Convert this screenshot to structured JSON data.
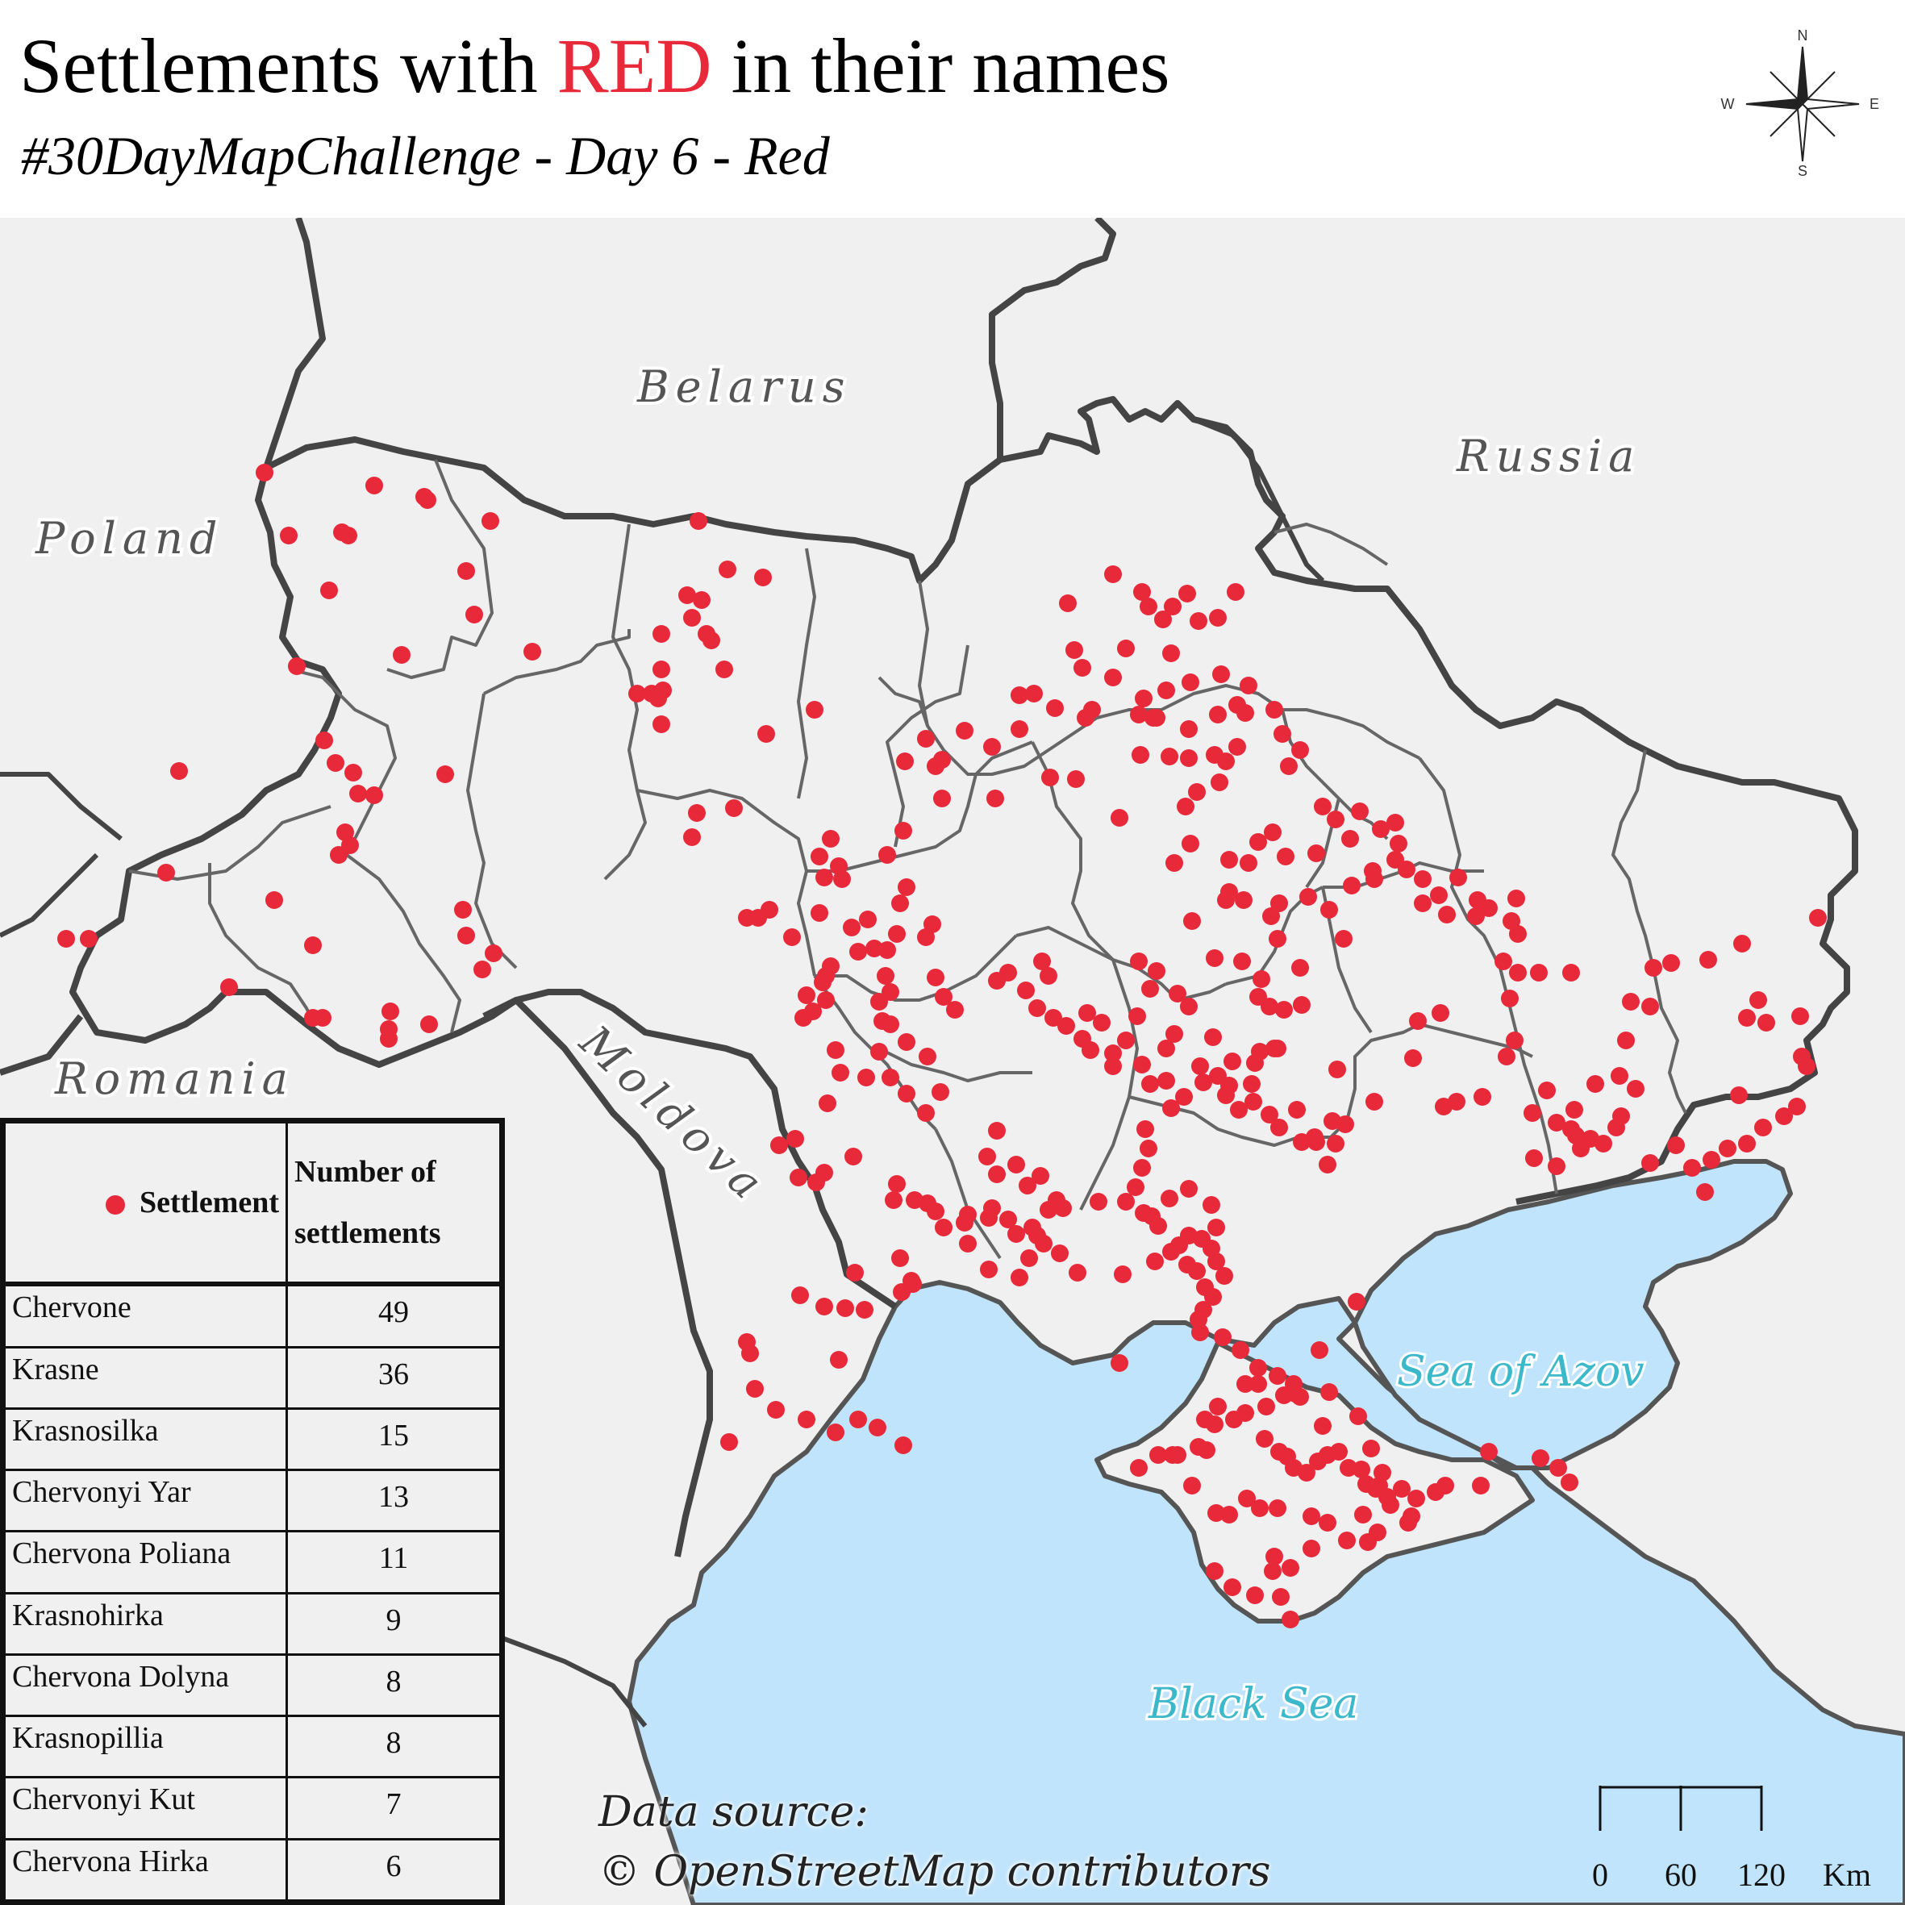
{
  "header": {
    "title_pre": "Settlements with ",
    "title_accent": "RED",
    "title_post": " in their names",
    "subtitle": "#30DayMapChallenge - Day 6 - Red"
  },
  "compass": {
    "n": "N",
    "s": "S",
    "e": "E",
    "w": "W"
  },
  "colors": {
    "land": "#f0f0f0",
    "sea": "#c0e4fb",
    "border": "#555555",
    "region_border": "#666666",
    "settlement": "#e8293a",
    "sea_label": "#3bb8c9"
  },
  "labels": {
    "belarus": "Belarus",
    "russia": "Russia",
    "poland": "Poland",
    "romania": "Romania",
    "moldova": "Moldova",
    "sea_of_azov": "Sea of Azov",
    "black_sea": "Black Sea"
  },
  "legend": {
    "symbol_label": "Settlement",
    "count_header_1": "Number of",
    "count_header_2": "settlements",
    "rows": [
      {
        "name": "Chervone",
        "count": "49"
      },
      {
        "name": "Krasne",
        "count": "36"
      },
      {
        "name": "Krasnosilka",
        "count": "15"
      },
      {
        "name": "Chervonyi Yar",
        "count": "13"
      },
      {
        "name": "Chervona Poliana",
        "count": "11"
      },
      {
        "name": "Krasnohirka",
        "count": "9"
      },
      {
        "name": "Chervona Dolyna",
        "count": "8"
      },
      {
        "name": "Krasnopillia",
        "count": "8"
      },
      {
        "name": "Chervonyi Kut",
        "count": "7"
      },
      {
        "name": "Chervona Hirka",
        "count": "6"
      }
    ]
  },
  "source": {
    "line1": "Data source:",
    "line2": "© OpenStreetMap contributors"
  },
  "scale": {
    "ticks": [
      "0",
      "60",
      "120"
    ],
    "unit": "Km"
  }
}
